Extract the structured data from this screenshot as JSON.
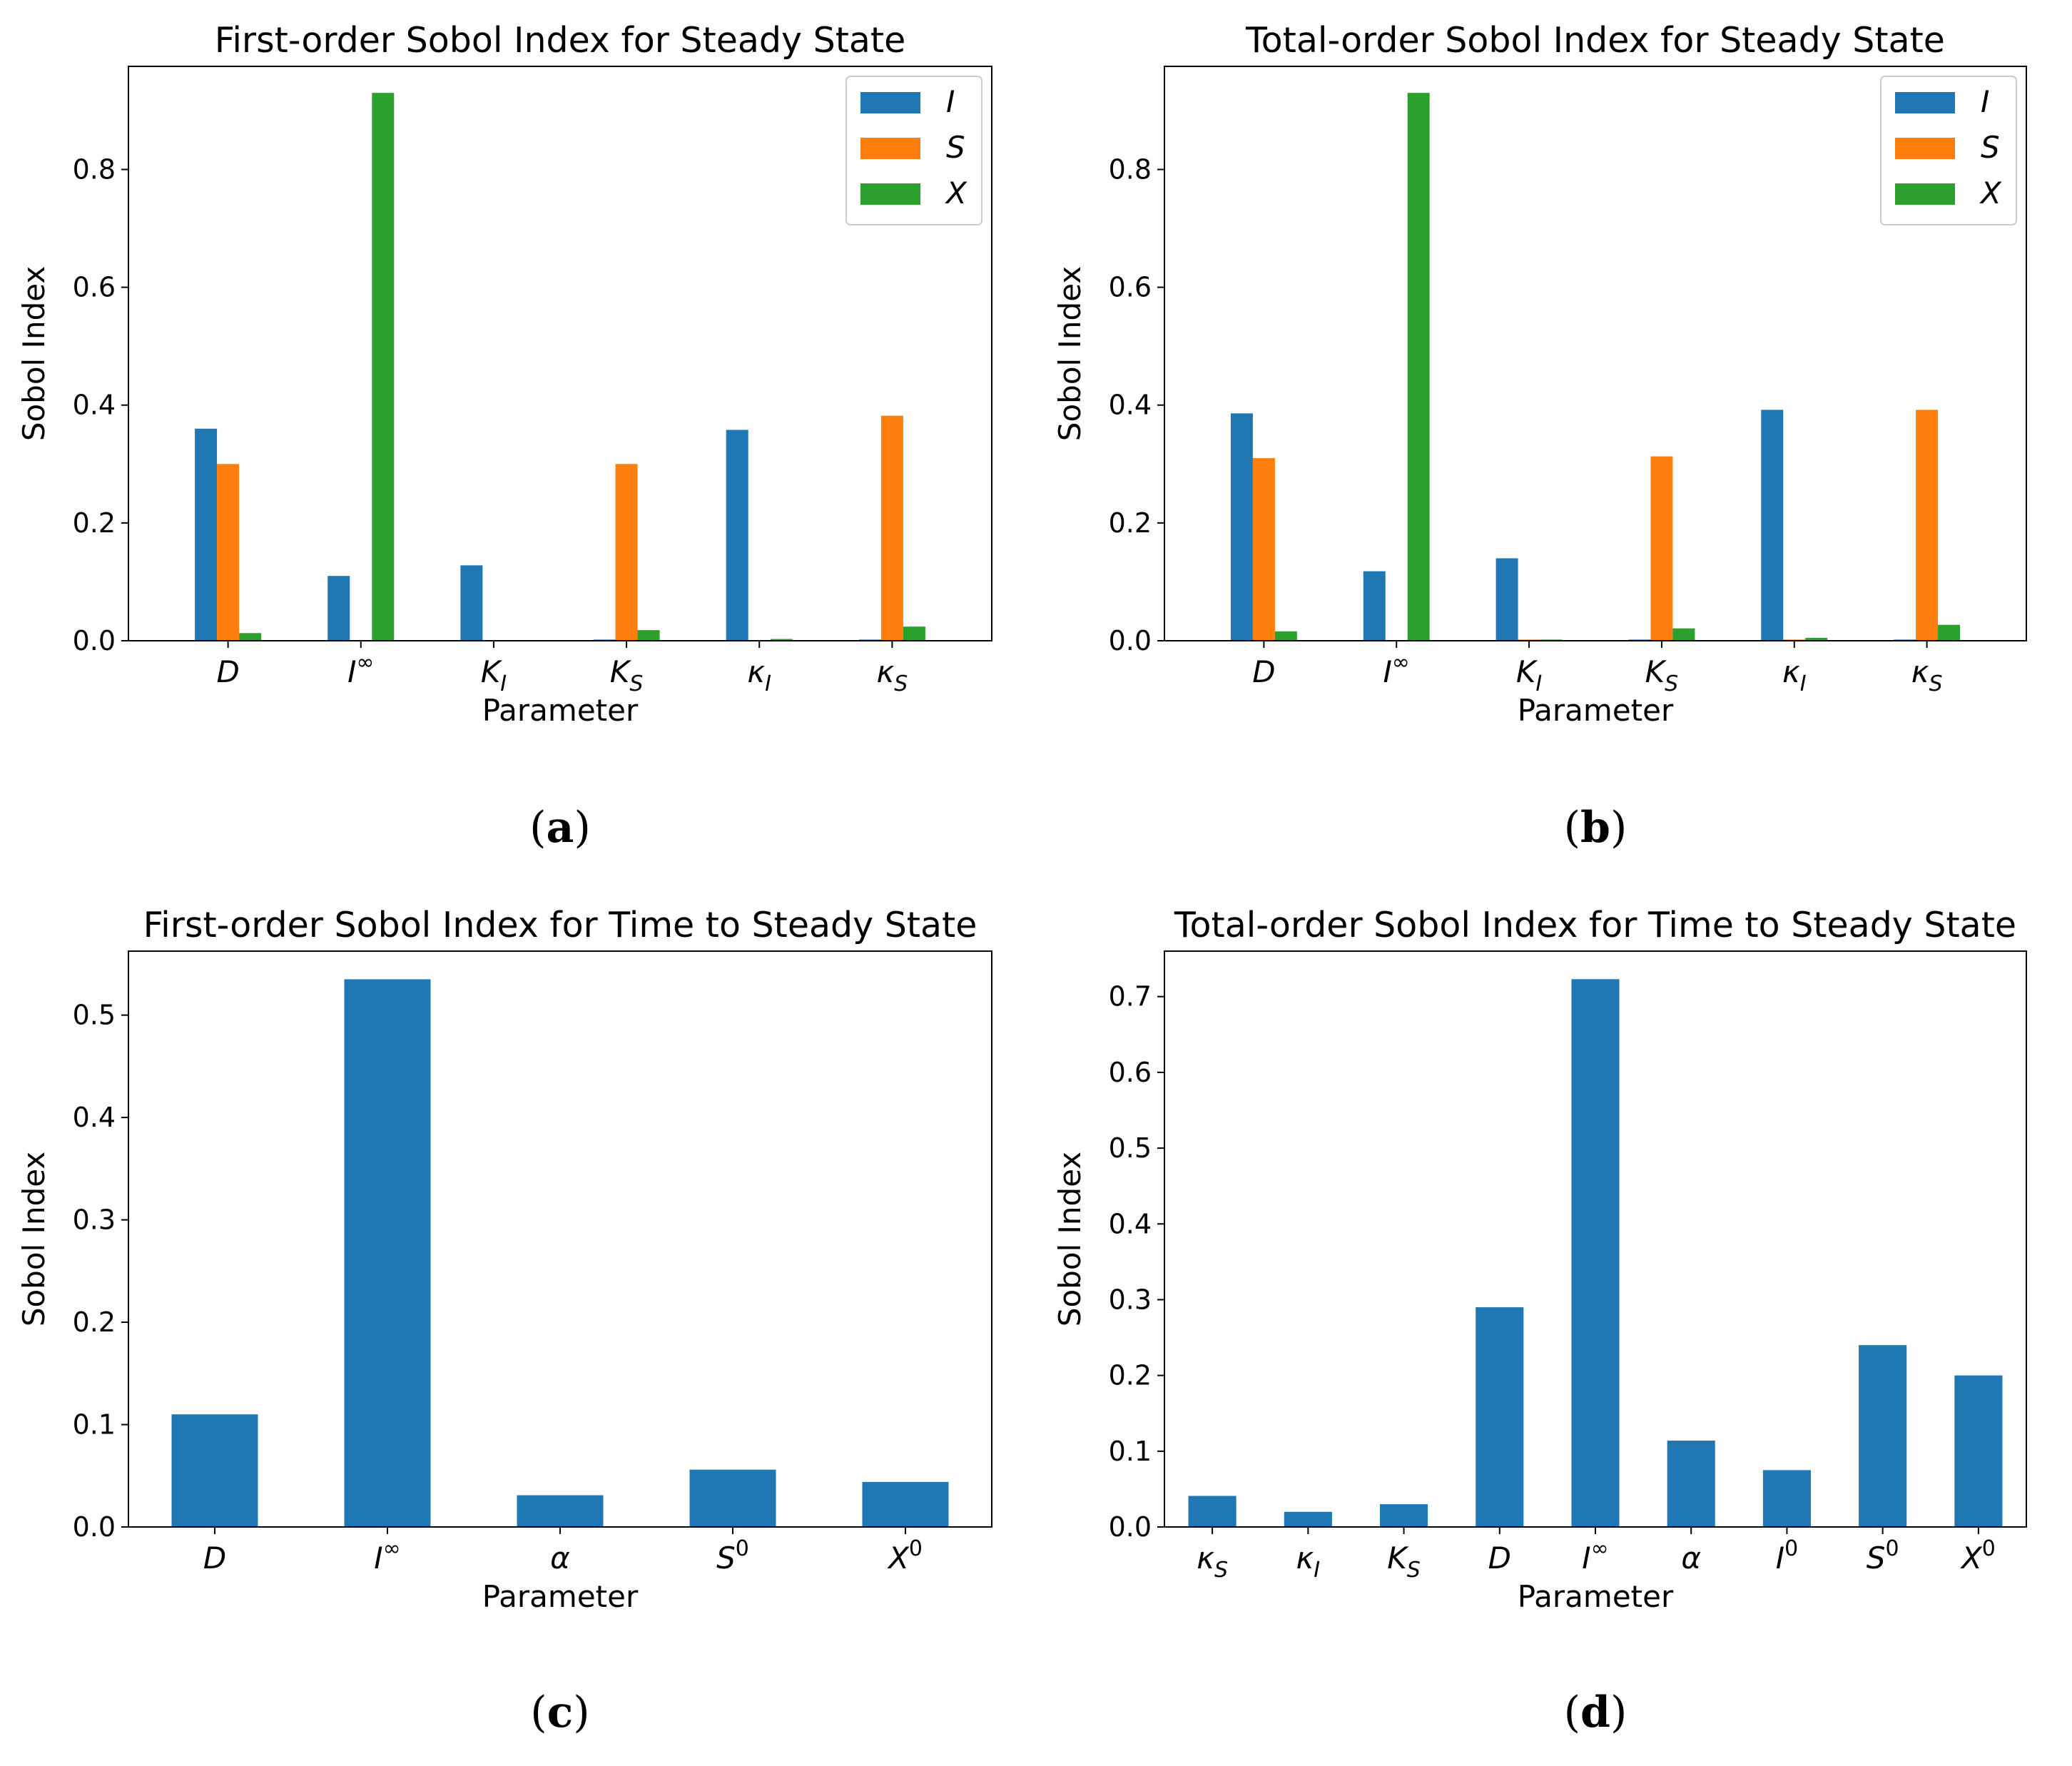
{
  "chart_data": [
    {
      "type": "bar",
      "panel": "a",
      "title": "First-order Sobol Index for Steady State",
      "xlabel": "Parameter",
      "ylabel": "Sobol Index",
      "ylim": [
        0,
        0.975
      ],
      "yticks": [
        "0.0",
        "0.2",
        "0.4",
        "0.6",
        "0.8"
      ],
      "ytick_values": [
        0,
        0.2,
        0.4,
        0.6,
        0.8
      ],
      "categories": [
        {
          "base": "D",
          "sub": ""
        },
        {
          "base": "I",
          "sup": "∞"
        },
        {
          "base": "K",
          "sub": "I"
        },
        {
          "base": "K",
          "sub": "S"
        },
        {
          "base": "κ",
          "sub": "I"
        },
        {
          "base": "κ",
          "sub": "S"
        }
      ],
      "series": [
        {
          "name": "I",
          "color": "#1f77b4",
          "values": [
            0.36,
            0.11,
            0.128,
            0.002,
            0.358,
            0.002
          ]
        },
        {
          "name": "S",
          "color": "#ff7f0e",
          "values": [
            0.3,
            0.0,
            0.0,
            0.3,
            0.0,
            0.382
          ]
        },
        {
          "name": "X",
          "color": "#2ca02c",
          "values": [
            0.013,
            0.93,
            0.0,
            0.018,
            0.003,
            0.024
          ]
        }
      ],
      "legend": "top-right",
      "panel_label": "a"
    },
    {
      "type": "bar",
      "panel": "b",
      "title": "Total-order Sobol Index for Steady State",
      "xlabel": "Parameter",
      "ylabel": "Sobol Index",
      "ylim": [
        0,
        0.975
      ],
      "yticks": [
        "0.0",
        "0.2",
        "0.4",
        "0.6",
        "0.8"
      ],
      "ytick_values": [
        0,
        0.2,
        0.4,
        0.6,
        0.8
      ],
      "categories": [
        {
          "base": "D",
          "sub": ""
        },
        {
          "base": "I",
          "sup": "∞"
        },
        {
          "base": "K",
          "sub": "I"
        },
        {
          "base": "K",
          "sub": "S"
        },
        {
          "base": "κ",
          "sub": "I"
        },
        {
          "base": "κ",
          "sub": "S"
        }
      ],
      "series": [
        {
          "name": "I",
          "color": "#1f77b4",
          "values": [
            0.386,
            0.118,
            0.14,
            0.002,
            0.392,
            0.002
          ]
        },
        {
          "name": "S",
          "color": "#ff7f0e",
          "values": [
            0.31,
            0.0,
            0.002,
            0.313,
            0.002,
            0.392
          ]
        },
        {
          "name": "X",
          "color": "#2ca02c",
          "values": [
            0.016,
            0.93,
            0.002,
            0.021,
            0.005,
            0.027
          ]
        }
      ],
      "legend": "top-right",
      "panel_label": "b"
    },
    {
      "type": "bar",
      "panel": "c",
      "title": "First-order Sobol Index for Time to Steady State",
      "xlabel": "Parameter",
      "ylabel": "Sobol Index",
      "ylim": [
        0,
        0.5625
      ],
      "yticks": [
        "0.0",
        "0.1",
        "0.2",
        "0.3",
        "0.4",
        "0.5"
      ],
      "ytick_values": [
        0,
        0.1,
        0.2,
        0.3,
        0.4,
        0.5
      ],
      "categories": [
        {
          "base": "D"
        },
        {
          "base": "I",
          "sup": "∞"
        },
        {
          "base": "α"
        },
        {
          "base": "S",
          "sup": "0"
        },
        {
          "base": "X",
          "sup": "0"
        }
      ],
      "series": [
        {
          "name": "",
          "color": "#1f77b4",
          "values": [
            0.11,
            0.535,
            0.031,
            0.056,
            0.044
          ]
        }
      ],
      "panel_label": "c"
    },
    {
      "type": "bar",
      "panel": "d",
      "title": "Total-order Sobol Index for Time to Steady State",
      "xlabel": "Parameter",
      "ylabel": "Sobol Index",
      "ylim": [
        0,
        0.76
      ],
      "yticks": [
        "0.0",
        "0.1",
        "0.2",
        "0.3",
        "0.4",
        "0.5",
        "0.6",
        "0.7"
      ],
      "ytick_values": [
        0,
        0.1,
        0.2,
        0.3,
        0.4,
        0.5,
        0.6,
        0.7
      ],
      "categories": [
        {
          "base": "κ",
          "sub": "S"
        },
        {
          "base": "κ",
          "sub": "I"
        },
        {
          "base": "K",
          "sub": "S"
        },
        {
          "base": "D"
        },
        {
          "base": "I",
          "sup": "∞"
        },
        {
          "base": "α"
        },
        {
          "base": "I",
          "sup": "0"
        },
        {
          "base": "S",
          "sup": "0"
        },
        {
          "base": "X",
          "sup": "0"
        }
      ],
      "series": [
        {
          "name": "",
          "color": "#1f77b4",
          "values": [
            0.041,
            0.02,
            0.03,
            0.29,
            0.723,
            0.114,
            0.075,
            0.24,
            0.2
          ]
        }
      ],
      "panel_label": "d"
    }
  ]
}
